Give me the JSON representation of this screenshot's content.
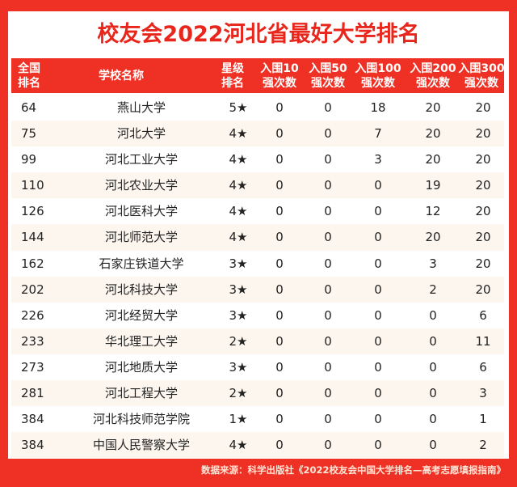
{
  "title": "校友会2022河北省最好大学排名",
  "colors": {
    "accent": "#ee3124",
    "title": "#e8261c",
    "row_alt": "#fdf6ef"
  },
  "headers": {
    "rank": [
      "全国",
      "排名"
    ],
    "name": "学校名称",
    "stars": [
      "星级",
      "排名"
    ],
    "top10": [
      "入围10",
      "强次数"
    ],
    "top50": [
      "入围50",
      "强次数"
    ],
    "top100": [
      "入围100",
      "强次数"
    ],
    "top200": [
      "入围200",
      "强次数"
    ],
    "top300": [
      "入围300",
      "强次数"
    ]
  },
  "rows": [
    {
      "rank": "64",
      "name": "燕山大学",
      "stars": "5★",
      "t10": "0",
      "t50": "0",
      "t100": "18",
      "t200": "20",
      "t300": "20"
    },
    {
      "rank": "75",
      "name": "河北大学",
      "stars": "4★",
      "t10": "0",
      "t50": "0",
      "t100": "7",
      "t200": "20",
      "t300": "20"
    },
    {
      "rank": "99",
      "name": "河北工业大学",
      "stars": "4★",
      "t10": "0",
      "t50": "0",
      "t100": "3",
      "t200": "20",
      "t300": "20"
    },
    {
      "rank": "110",
      "name": "河北农业大学",
      "stars": "4★",
      "t10": "0",
      "t50": "0",
      "t100": "0",
      "t200": "19",
      "t300": "20"
    },
    {
      "rank": "126",
      "name": "河北医科大学",
      "stars": "4★",
      "t10": "0",
      "t50": "0",
      "t100": "0",
      "t200": "12",
      "t300": "20"
    },
    {
      "rank": "144",
      "name": "河北师范大学",
      "stars": "4★",
      "t10": "0",
      "t50": "0",
      "t100": "0",
      "t200": "20",
      "t300": "20"
    },
    {
      "rank": "162",
      "name": "石家庄铁道大学",
      "stars": "3★",
      "t10": "0",
      "t50": "0",
      "t100": "0",
      "t200": "3",
      "t300": "20"
    },
    {
      "rank": "202",
      "name": "河北科技大学",
      "stars": "3★",
      "t10": "0",
      "t50": "0",
      "t100": "0",
      "t200": "2",
      "t300": "20"
    },
    {
      "rank": "226",
      "name": "河北经贸大学",
      "stars": "3★",
      "t10": "0",
      "t50": "0",
      "t100": "0",
      "t200": "0",
      "t300": "6"
    },
    {
      "rank": "233",
      "name": "华北理工大学",
      "stars": "2★",
      "t10": "0",
      "t50": "0",
      "t100": "0",
      "t200": "0",
      "t300": "11"
    },
    {
      "rank": "273",
      "name": "河北地质大学",
      "stars": "3★",
      "t10": "0",
      "t50": "0",
      "t100": "0",
      "t200": "0",
      "t300": "6"
    },
    {
      "rank": "281",
      "name": "河北工程大学",
      "stars": "2★",
      "t10": "0",
      "t50": "0",
      "t100": "0",
      "t200": "0",
      "t300": "3"
    },
    {
      "rank": "384",
      "name": "河北科技师范学院",
      "stars": "1★",
      "t10": "0",
      "t50": "0",
      "t100": "0",
      "t200": "0",
      "t300": "1"
    },
    {
      "rank": "384",
      "name": "中国人民警察大学",
      "stars": "4★",
      "t10": "0",
      "t50": "0",
      "t100": "0",
      "t200": "0",
      "t300": "2"
    }
  ],
  "footer": {
    "source": "数据来源：科学出版社《2022校友会中国大学排名—高考志愿填报指南》"
  }
}
